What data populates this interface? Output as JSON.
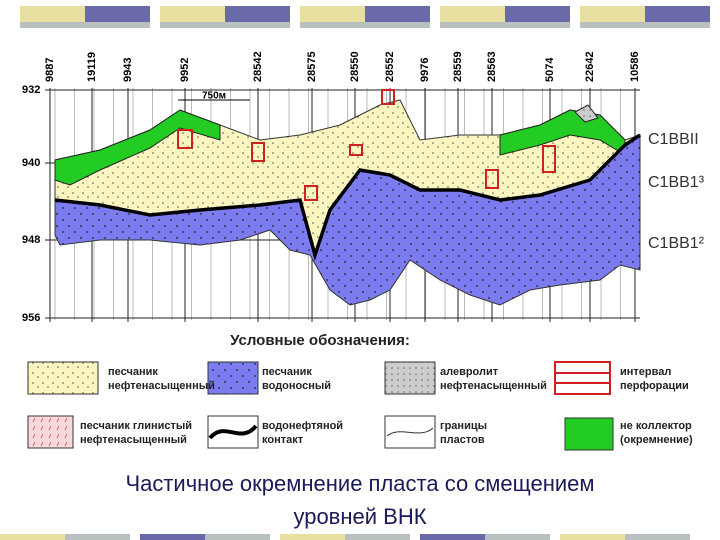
{
  "wells": [
    "9887",
    "19119",
    "9943",
    "9952",
    "28542",
    "28575",
    "28550",
    "28552",
    "9976",
    "28559",
    "28563",
    "5074",
    "22642",
    "10586"
  ],
  "depths": [
    "932",
    "940",
    "948",
    "956"
  ],
  "scale_label": "750м",
  "layers": [
    "С1ВВII",
    "С1ВВ1³",
    "С1ВВ1²"
  ],
  "legend": {
    "title": "Условные обозначения:",
    "items": [
      {
        "lines": [
          "песчаник",
          "нефтенасыщенный"
        ]
      },
      {
        "lines": [
          "песчаник",
          "водоносный"
        ]
      },
      {
        "lines": [
          "алевролит",
          "нефтенасыщенный"
        ]
      },
      {
        "lines": [
          "интервал",
          "перфорации"
        ]
      },
      {
        "lines": [
          "песчаник глинистый",
          "нефтенасыщенный"
        ]
      },
      {
        "lines": [
          "водонефтяной",
          "контакт"
        ]
      },
      {
        "lines": [
          "границы",
          "пластов"
        ]
      },
      {
        "lines": [
          "не коллектор",
          "(окремнение)"
        ]
      }
    ]
  },
  "caption": [
    "Частичное окремнение пласта со смещением",
    "уровней ВНК"
  ]
}
